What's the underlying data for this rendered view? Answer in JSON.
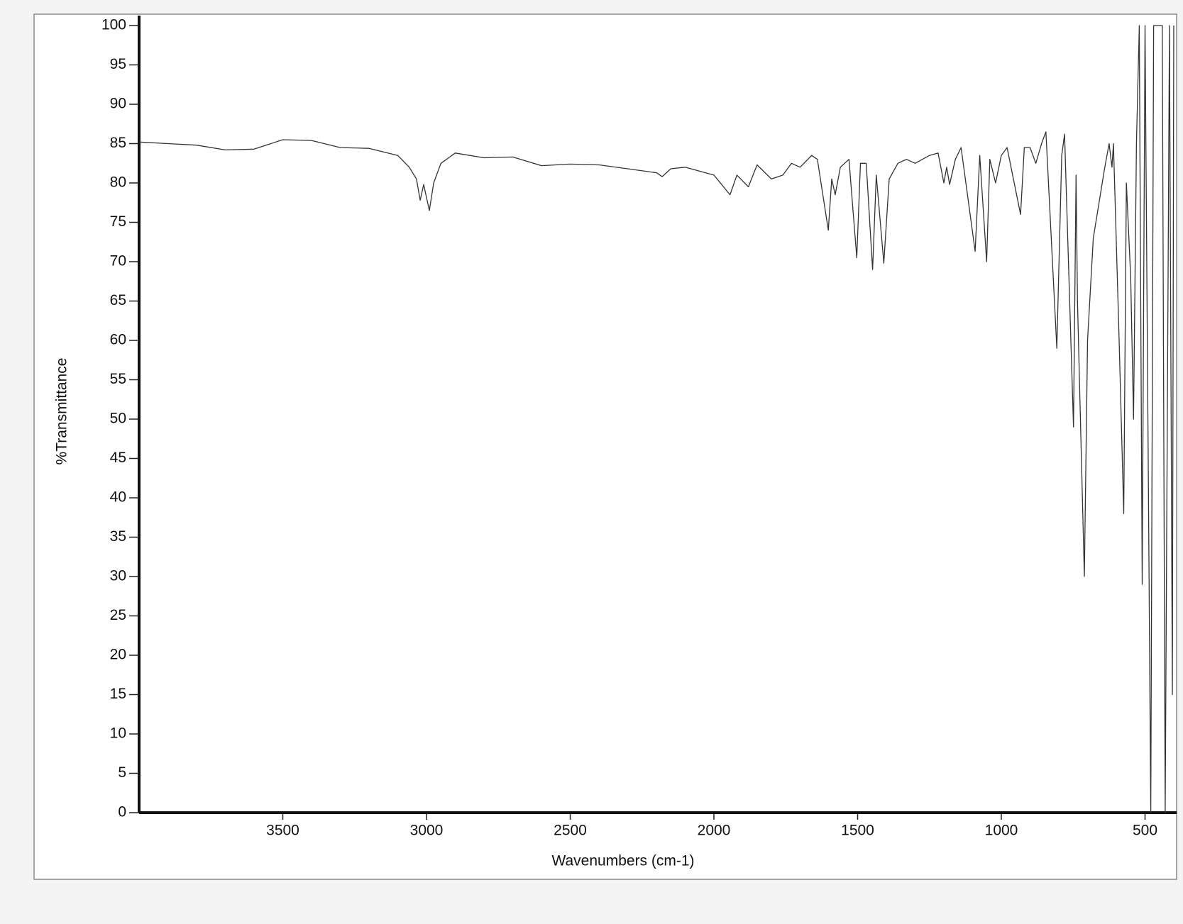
{
  "chart_data": {
    "type": "line",
    "x_label": "Wavenumbers (cm-1)",
    "y_label": "%Transmittance",
    "xlim": [
      4000,
      400
    ],
    "ylim": [
      0,
      100
    ],
    "xticks": [
      3500,
      3000,
      2500,
      2000,
      1500,
      1000,
      500
    ],
    "yticks": [
      0,
      5,
      10,
      15,
      20,
      25,
      30,
      35,
      40,
      45,
      50,
      55,
      60,
      65,
      70,
      75,
      80,
      85,
      90,
      95,
      100
    ],
    "series": [
      {
        "color": "#333333",
        "x": [
          4000,
          3900,
          3800,
          3700,
          3600,
          3500,
          3400,
          3300,
          3200,
          3100,
          3060,
          3035,
          3022,
          3010,
          2990,
          2975,
          2950,
          2900,
          2800,
          2700,
          2600,
          2500,
          2400,
          2300,
          2200,
          2180,
          2150,
          2100,
          2050,
          2000,
          1944,
          1920,
          1880,
          1850,
          1800,
          1760,
          1730,
          1700,
          1660,
          1640,
          1602,
          1590,
          1578,
          1560,
          1530,
          1503,
          1490,
          1470,
          1448,
          1435,
          1409,
          1390,
          1360,
          1330,
          1300,
          1250,
          1220,
          1200,
          1190,
          1180,
          1160,
          1140,
          1091,
          1075,
          1051,
          1040,
          1020,
          1000,
          980,
          933,
          920,
          900,
          880,
          860,
          845,
          807,
          790,
          780,
          749,
          740,
          735,
          711,
          700,
          680,
          660,
          640,
          625,
          615,
          610,
          590,
          574,
          565,
          550,
          540,
          530,
          520,
          510,
          500,
          480,
          470,
          440,
          430,
          415,
          405,
          400
        ],
        "values": [
          85.2,
          85,
          84.8,
          84.2,
          84.3,
          85.5,
          85.4,
          84.5,
          84.4,
          83.5,
          82,
          80.5,
          77.8,
          79.8,
          76.5,
          80,
          82.5,
          83.8,
          83.2,
          83.3,
          82.2,
          82.4,
          82.3,
          81.8,
          81.3,
          80.8,
          81.8,
          82,
          81.5,
          81,
          78.5,
          81,
          79.5,
          82.3,
          80.5,
          81,
          82.5,
          82,
          83.5,
          83,
          74,
          80.5,
          78.5,
          82,
          83,
          70.5,
          82.5,
          82.5,
          69,
          81,
          69.8,
          80.5,
          82.5,
          83,
          82.5,
          83.5,
          83.8,
          80,
          82,
          79.8,
          83,
          84.5,
          71.3,
          83.5,
          70,
          83,
          80,
          83.5,
          84.5,
          76,
          84.5,
          84.5,
          82.5,
          85,
          86.5,
          59,
          83.5,
          86.2,
          49,
          81,
          65,
          30,
          60,
          73,
          77.5,
          82,
          85,
          82,
          85,
          60,
          38,
          80,
          68,
          50,
          85,
          100,
          29,
          100,
          0,
          100,
          100,
          0,
          100,
          15,
          100
        ]
      }
    ]
  }
}
